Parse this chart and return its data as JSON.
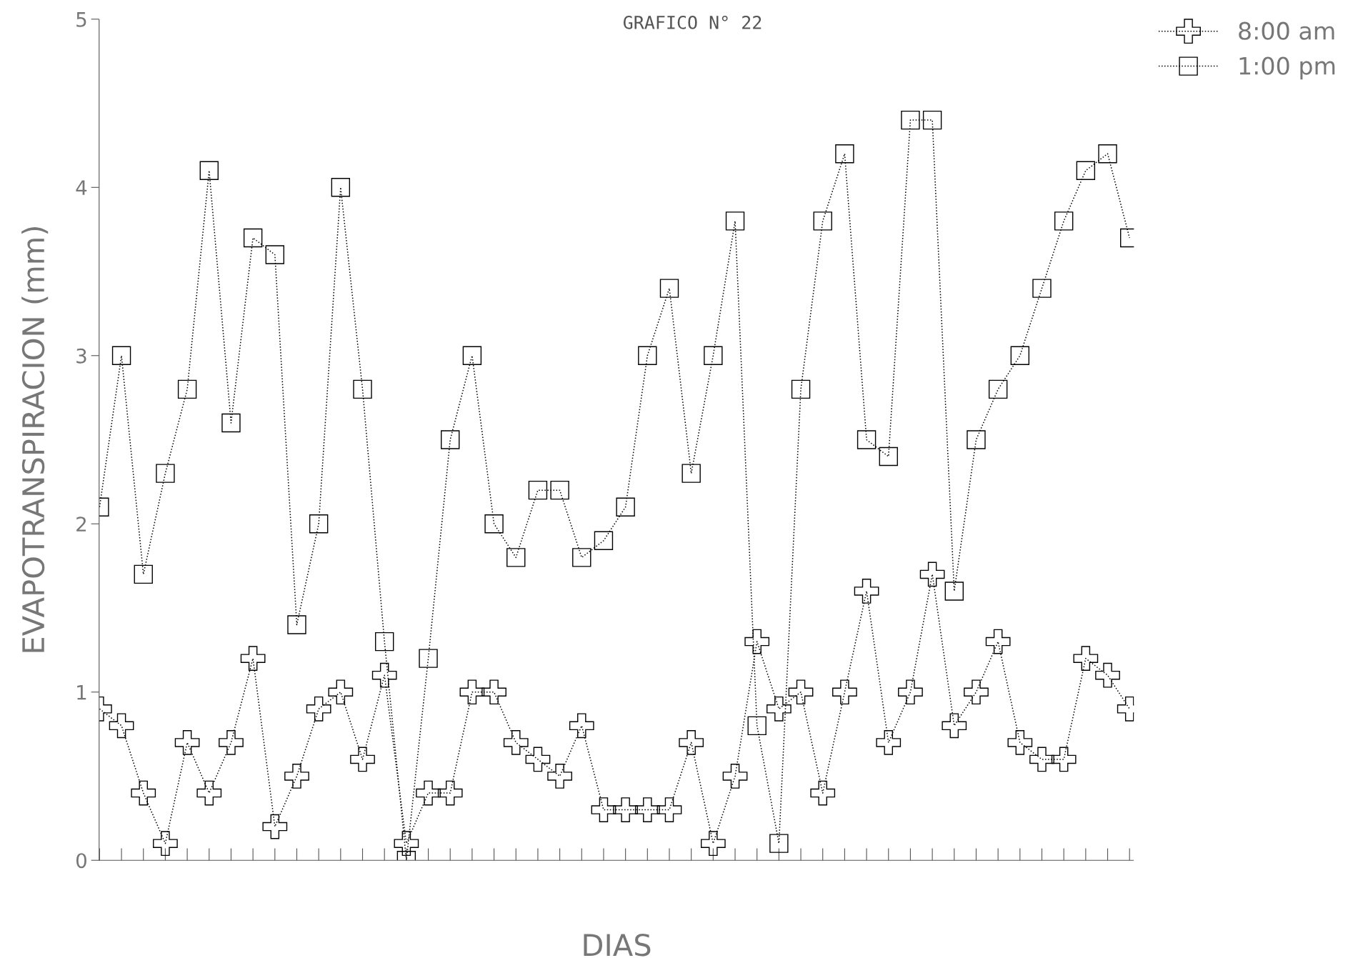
{
  "chart_data": {
    "type": "line",
    "title": "GRAFICO N° 22",
    "xlabel": "DIAS",
    "ylabel": "EVAPOTRANSPIRACION (mm)",
    "categories": [
      null,
      null,
      null,
      null,
      null,
      null,
      null,
      null,
      null,
      null,
      null,
      null,
      null,
      null,
      null,
      null,
      null,
      null,
      null,
      null,
      null,
      null,
      null,
      null,
      null,
      null,
      null,
      null,
      null,
      null,
      null,
      null,
      null,
      null,
      null,
      null,
      null,
      null,
      null,
      null,
      null,
      null,
      null,
      null,
      null,
      null,
      null,
      null
    ],
    "series": [
      {
        "name": "8:00 am",
        "color": "#000000",
        "marker": "cross",
        "values": [
          0.9,
          0.8,
          0.4,
          0.1,
          0.7,
          0.4,
          0.7,
          1.2,
          0.2,
          0.5,
          0.9,
          1.0,
          0.6,
          1.1,
          0.1,
          0.4,
          0.4,
          1.0,
          1.0,
          0.7,
          0.6,
          0.5,
          0.8,
          0.3,
          0.3,
          0.3,
          0.3,
          0.7,
          0.1,
          0.5,
          1.3,
          0.9,
          1.0,
          0.4,
          1.0,
          1.6,
          0.7,
          1.0,
          1.7,
          0.8,
          1.0,
          1.3,
          0.7,
          0.6,
          0.6,
          1.2,
          1.1,
          0.9
        ]
      },
      {
        "name": "1:00 pm",
        "color": "#000000",
        "marker": "square",
        "values": [
          2.1,
          3.0,
          1.7,
          2.3,
          2.8,
          4.1,
          2.6,
          3.7,
          3.6,
          1.4,
          2.0,
          4.0,
          2.8,
          1.3,
          0.0,
          1.2,
          2.5,
          3.0,
          2.0,
          1.8,
          2.2,
          2.2,
          1.8,
          1.9,
          2.1,
          3.0,
          3.4,
          2.3,
          3.0,
          3.8,
          0.8,
          0.1,
          2.8,
          3.8,
          4.2,
          2.5,
          2.4,
          4.4,
          4.4,
          1.6,
          2.5,
          2.8,
          3.0,
          3.4,
          3.8,
          4.1,
          4.2,
          3.7
        ]
      }
    ],
    "ylim": [
      0,
      5
    ],
    "yticks": [
      0,
      1,
      2,
      3,
      4,
      5
    ],
    "grid": false,
    "legend": "top right",
    "line_style": "dotted"
  }
}
